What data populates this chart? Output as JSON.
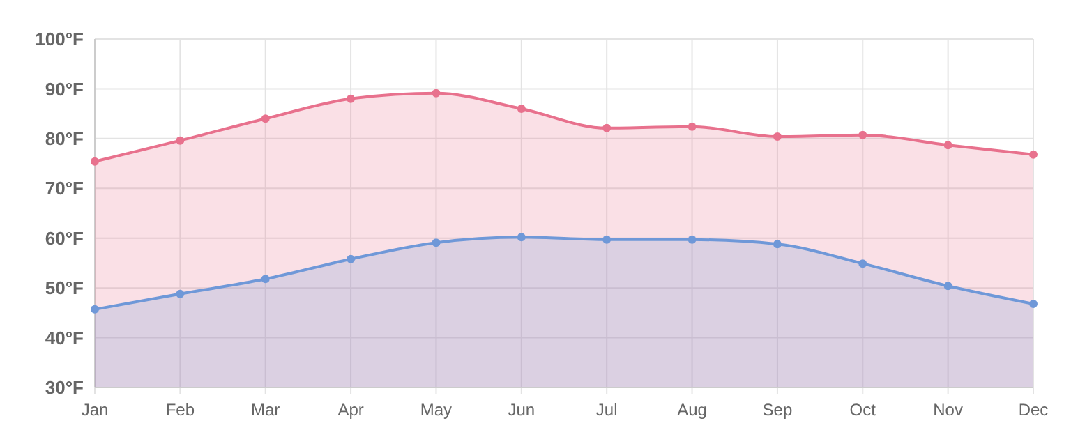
{
  "chart_data": {
    "type": "area",
    "categories": [
      "Jan",
      "Feb",
      "Mar",
      "Apr",
      "May",
      "Jun",
      "Jul",
      "Aug",
      "Sep",
      "Oct",
      "Nov",
      "Dec"
    ],
    "series": [
      {
        "color": "#e8718d",
        "values": [
          75.4,
          79.6,
          84,
          88,
          89.1,
          86,
          82.1,
          82.4,
          80.4,
          80.7,
          78.7,
          76.8
        ]
      },
      {
        "color": "#6f98d8",
        "values": [
          45.7,
          48.8,
          51.8,
          55.8,
          59.1,
          60.2,
          59.7,
          59.7,
          58.8,
          54.9,
          50.4,
          46.8
        ]
      }
    ],
    "ylim": [
      30,
      100
    ],
    "yticks": [
      {
        "value": 30,
        "label": "30°F"
      },
      {
        "value": 40,
        "label": "40°F"
      },
      {
        "value": 50,
        "label": "50°F"
      },
      {
        "value": 60,
        "label": "60°F"
      },
      {
        "value": 70,
        "label": "70°F"
      },
      {
        "value": 80,
        "label": "80°F"
      },
      {
        "value": 90,
        "label": "90°F"
      },
      {
        "value": 100,
        "label": "100°F"
      }
    ],
    "grid": true,
    "marker": "circle",
    "line_style": "solid"
  }
}
